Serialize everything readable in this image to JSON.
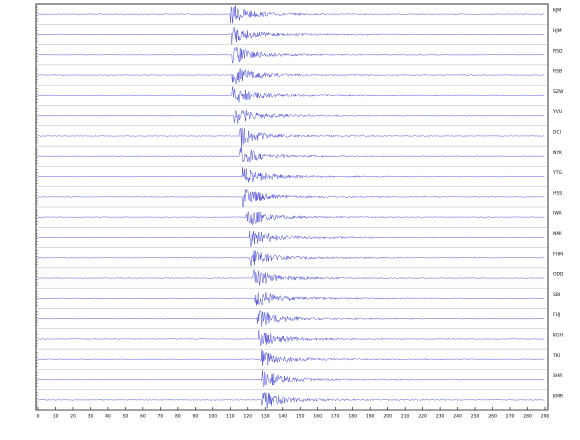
{
  "chart_data": {
    "type": "seismogram",
    "color": "#1a1acc",
    "xlim": [
      0,
      290
    ],
    "xticks": [
      0,
      10,
      20,
      30,
      40,
      50,
      60,
      70,
      80,
      90,
      100,
      110,
      120,
      130,
      140,
      150,
      160,
      170,
      180,
      190,
      200,
      210,
      220,
      230,
      240,
      250,
      260,
      270,
      280,
      290
    ],
    "series": [
      {
        "name": "KJM",
        "arrival": 110
      },
      {
        "name": "HJM",
        "arrival": 110
      },
      {
        "name": "RSD",
        "arrival": 111
      },
      {
        "name": "RSB",
        "arrival": 111
      },
      {
        "name": "SZW",
        "arrival": 111
      },
      {
        "name": "YVU",
        "arrival": 112
      },
      {
        "name": "DCI",
        "arrival": 115
      },
      {
        "name": "NYK",
        "arrival": 115
      },
      {
        "name": "YTG",
        "arrival": 117
      },
      {
        "name": "HSS",
        "arrival": 117
      },
      {
        "name": "IWA",
        "arrival": 119
      },
      {
        "name": "NMI",
        "arrival": 121
      },
      {
        "name": "FHM",
        "arrival": 121
      },
      {
        "name": "ODD",
        "arrival": 123
      },
      {
        "name": "SBI",
        "arrival": 124
      },
      {
        "name": "FUJ",
        "arrival": 125
      },
      {
        "name": "KGH",
        "arrival": 126
      },
      {
        "name": "TKI",
        "arrival": 127
      },
      {
        "name": "SHR",
        "arrival": 128
      },
      {
        "name": "KMR",
        "arrival": 128
      }
    ]
  }
}
